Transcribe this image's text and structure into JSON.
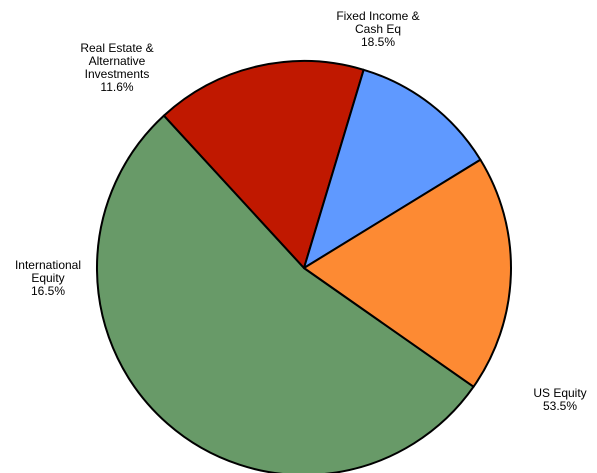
{
  "chart_data": {
    "type": "pie",
    "title": "",
    "slices": [
      {
        "name_lines": [
          "US Equity"
        ],
        "percent_label": "53.5%",
        "value": 53.5,
        "color": "#689a68"
      },
      {
        "name_lines": [
          "International",
          "Equity"
        ],
        "percent_label": "16.5%",
        "value": 16.5,
        "color": "#c01800"
      },
      {
        "name_lines": [
          "Real Estate &",
          "Alternative",
          "Investments"
        ],
        "percent_label": "11.6%",
        "value": 11.6,
        "color": "#5f99ff"
      },
      {
        "name_lines": [
          "Fixed Income &",
          "Cash Eq"
        ],
        "percent_label": "18.5%",
        "value": 18.5,
        "color": "#fd8a33"
      }
    ],
    "start_angle_deg": 35,
    "direction": "clockwise",
    "legend": "none",
    "labels": "outside"
  }
}
